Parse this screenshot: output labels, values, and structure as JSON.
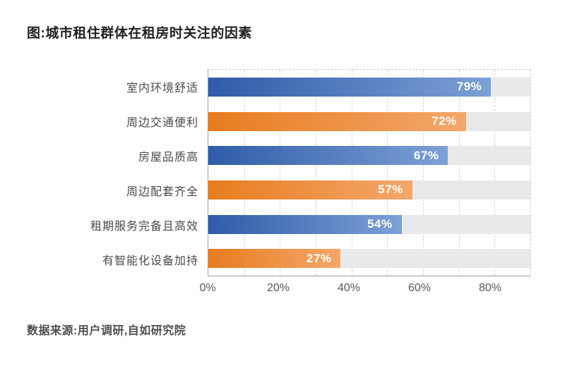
{
  "title": "图:城市租住群体在租房时关注的因素",
  "source": "数据来源:用户调研,自如研究院",
  "chart_data": {
    "type": "bar",
    "orientation": "horizontal",
    "title": "图:城市租住群体在租房时关注的因素",
    "categories": [
      "室内环境舒适",
      "周边交通便利",
      "房屋品质高",
      "周边配套齐全",
      "租期服务完备且高效",
      "有智能化设备加持"
    ],
    "values": [
      79,
      72,
      67,
      57,
      54,
      27
    ],
    "value_labels": [
      "79%",
      "72%",
      "67%",
      "57%",
      "54%",
      "27%"
    ],
    "bar_drawn_lengths_percent": [
      79,
      72,
      67,
      57,
      54,
      37
    ],
    "axis_max_percent": 90,
    "x_ticks": [
      {
        "label": "0%",
        "value": 0
      },
      {
        "label": "20%",
        "value": 20
      },
      {
        "label": "40%",
        "value": 40
      },
      {
        "label": "60%",
        "value": 60
      },
      {
        "label": "80%",
        "value": 80
      }
    ],
    "gridline_step_percent": 10,
    "gridline_style": "dashed-vertical",
    "legend": "none",
    "bar_color_sequence": [
      "blue",
      "orange",
      "blue",
      "orange",
      "blue",
      "orange"
    ],
    "bar_palette": {
      "blue": {
        "start": "#2e5ca7",
        "end": "#7da0d6"
      },
      "orange": {
        "start": "#e87c1e",
        "end": "#f3a76b"
      }
    },
    "track_color": "#e9e9eb",
    "value_label_color": "#ffffff"
  }
}
